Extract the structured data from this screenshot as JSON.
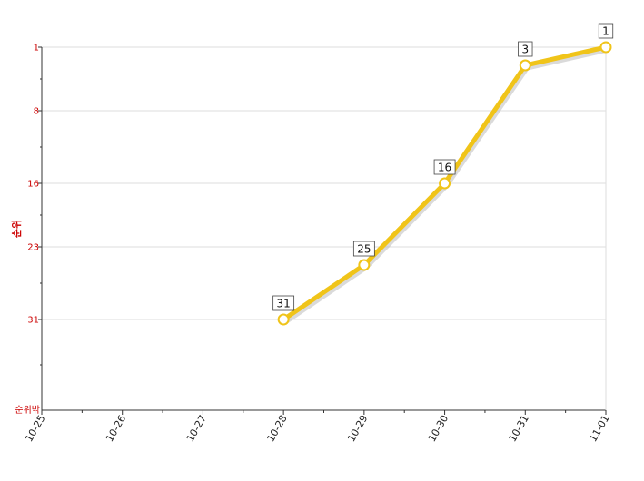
{
  "chart_data": {
    "type": "line",
    "ylabel": "순위",
    "y_axis_bottom_label": "순위밖",
    "categories": [
      "10-25",
      "10-26",
      "10-27",
      "10-28",
      "10-29",
      "10-30",
      "10-31",
      "11-01"
    ],
    "y_ticks": [
      1,
      8,
      16,
      23,
      31
    ],
    "ylim": [
      1,
      41
    ],
    "y_inverted": true,
    "grid": true,
    "series": [
      {
        "values": [
          null,
          null,
          null,
          31,
          25,
          16,
          3,
          1
        ],
        "color": "#f0c419"
      }
    ]
  }
}
